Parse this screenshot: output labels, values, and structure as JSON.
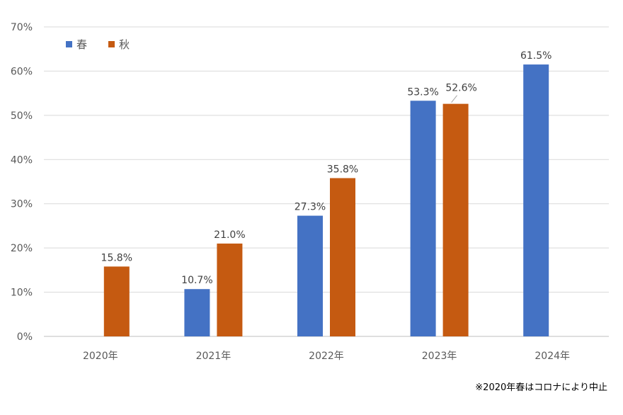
{
  "chart_data": {
    "type": "bar",
    "categories": [
      "2020年",
      "2021年",
      "2022年",
      "2023年",
      "2024年"
    ],
    "series": [
      {
        "name": "春",
        "color": "#4472C4",
        "values": [
          null,
          10.7,
          27.3,
          53.3,
          61.5
        ]
      },
      {
        "name": "秋",
        "color": "#C55A11",
        "values": [
          15.8,
          21.0,
          35.8,
          52.6,
          null
        ]
      }
    ],
    "value_labels": {
      "春": [
        null,
        "10.7%",
        "27.3%",
        "53.3%",
        "61.5%"
      ],
      "秋": [
        "15.8%",
        "21.0%",
        "35.8%",
        "52.6%",
        null
      ]
    },
    "y_ticks": [
      "0%",
      "10%",
      "20%",
      "30%",
      "40%",
      "50%",
      "60%",
      "70%"
    ],
    "ylim": [
      0,
      70
    ],
    "grid": true,
    "legend_position": "top-left",
    "title": "",
    "xlabel": "",
    "ylabel": ""
  },
  "note": "※2020年春はコロナにより中止"
}
